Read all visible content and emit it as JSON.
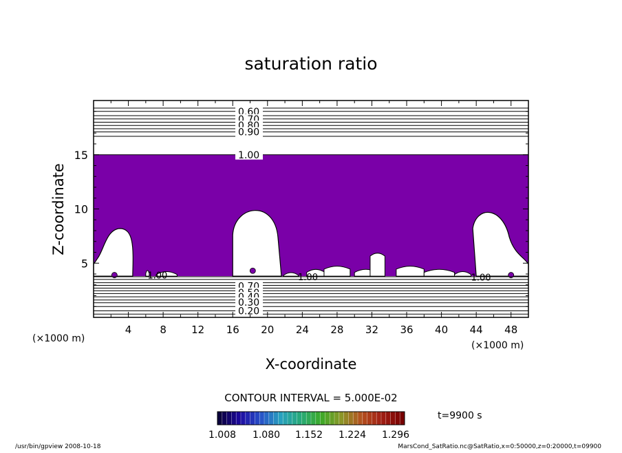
{
  "chart_data": {
    "type": "contour",
    "title": "saturation ratio",
    "xlabel": "X-coordinate",
    "ylabel": "Z-coordinate",
    "x_units": "(×1000 m)",
    "z_units": "(×1000 m)",
    "xlim": [
      0,
      50
    ],
    "ylim": [
      0,
      20
    ],
    "x_ticks": [
      4,
      8,
      12,
      16,
      20,
      24,
      28,
      32,
      36,
      40,
      44,
      48
    ],
    "y_ticks": [
      5,
      10,
      15
    ],
    "contour_interval_label": "CONTOUR INTERVAL = 5.000E-02",
    "shaded_region": {
      "color": "#7a00a8",
      "z_range": [
        3.8,
        15.0
      ],
      "description_threshold": 1.008
    },
    "cloud_bubbles": [
      {
        "x_center": 2.6,
        "z_top": 8.2
      },
      {
        "x_center": 18.6,
        "z_top": 10.5
      },
      {
        "x_center": 45.0,
        "z_top": 10.0
      }
    ],
    "upper_contours": [
      {
        "level": "0.60",
        "z": 19.0
      },
      {
        "level": "0.70",
        "z": 18.3
      },
      {
        "level": "0.80",
        "z": 17.7
      },
      {
        "level": "0.90",
        "z": 17.1
      },
      {
        "level": "1.00",
        "z": 15.0
      }
    ],
    "lower_contour_labels": [
      "0.70",
      "0.50",
      "0.40",
      "0.30",
      "0.20"
    ],
    "inner_labels": [
      "1.00",
      "1.00",
      "1.00"
    ],
    "colorbar": {
      "ticks": [
        "1.008",
        "1.080",
        "1.152",
        "1.224",
        "1.296"
      ]
    },
    "time_label": "t=9900 s"
  },
  "footer": {
    "left": "/usr/bin/gpview   2008-10-18",
    "right": "MarsCond_SatRatio.nc@SatRatio,x=0:50000,z=0:20000,t=09900"
  },
  "colors": {
    "shade": "#7a00a8",
    "axis": "#000000"
  }
}
